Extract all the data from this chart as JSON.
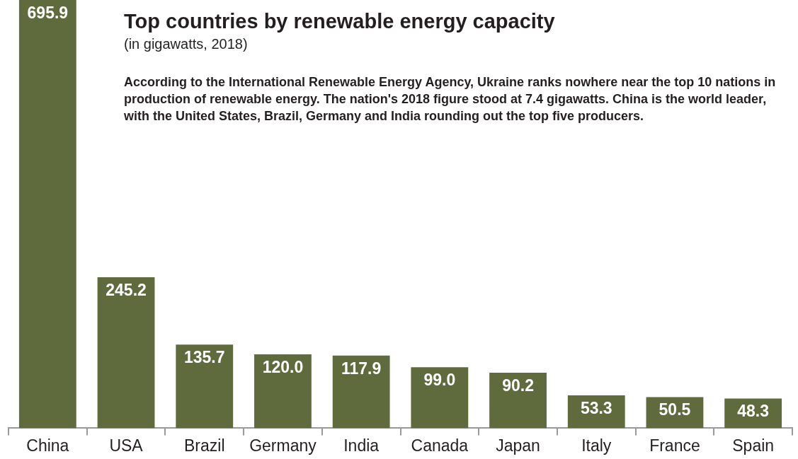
{
  "chart_data": {
    "type": "bar",
    "title": "Top countries by renewable energy capacity",
    "subtitle": "(in gigawatts, 2018)",
    "annotations": [
      "According to the International Renewable Energy Agency, Ukraine ranks nowhere near the top 10 nations in production of renewable energy. The nation's 2018 figure stood at 7.4 gigawatts. China is the world leader, with the United States, Brazil, Germany and India rounding out the top five producers."
    ],
    "categories": [
      "China",
      "USA",
      "Brazil",
      "Germany",
      "India",
      "Canada",
      "Japan",
      "Italy",
      "France",
      "Spain"
    ],
    "values": [
      695.9,
      245.2,
      135.7,
      120.0,
      117.9,
      99.0,
      90.2,
      53.3,
      50.5,
      48.3
    ],
    "value_labels": [
      "695.9",
      "245.2",
      "135.7",
      "120.0",
      "117.9",
      "99.0",
      "90.2",
      "53.3",
      "50.5",
      "48.3"
    ],
    "color": "#5f6a3d"
  }
}
